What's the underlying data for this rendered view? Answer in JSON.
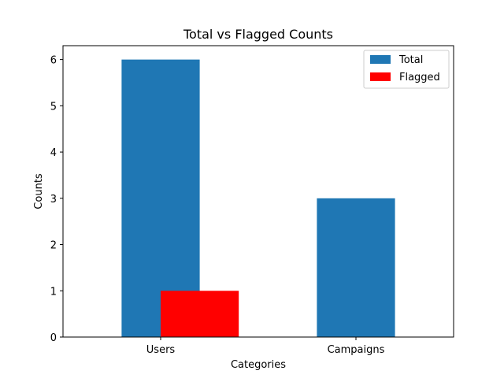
{
  "chart_data": {
    "type": "bar",
    "title": "Total vs Flagged Counts",
    "xlabel": "Categories",
    "ylabel": "Counts",
    "categories": [
      "Users",
      "Campaigns"
    ],
    "ylim": [
      0,
      6.3
    ],
    "yticks": [
      0,
      1,
      2,
      3,
      4,
      5,
      6
    ],
    "grid": false,
    "legend_position": "top-right",
    "series": [
      {
        "name": "Total",
        "values": [
          6,
          3
        ],
        "color": "#1f77b4"
      },
      {
        "name": "Flagged",
        "values": [
          1,
          0
        ],
        "color": "#ff0000"
      }
    ]
  }
}
